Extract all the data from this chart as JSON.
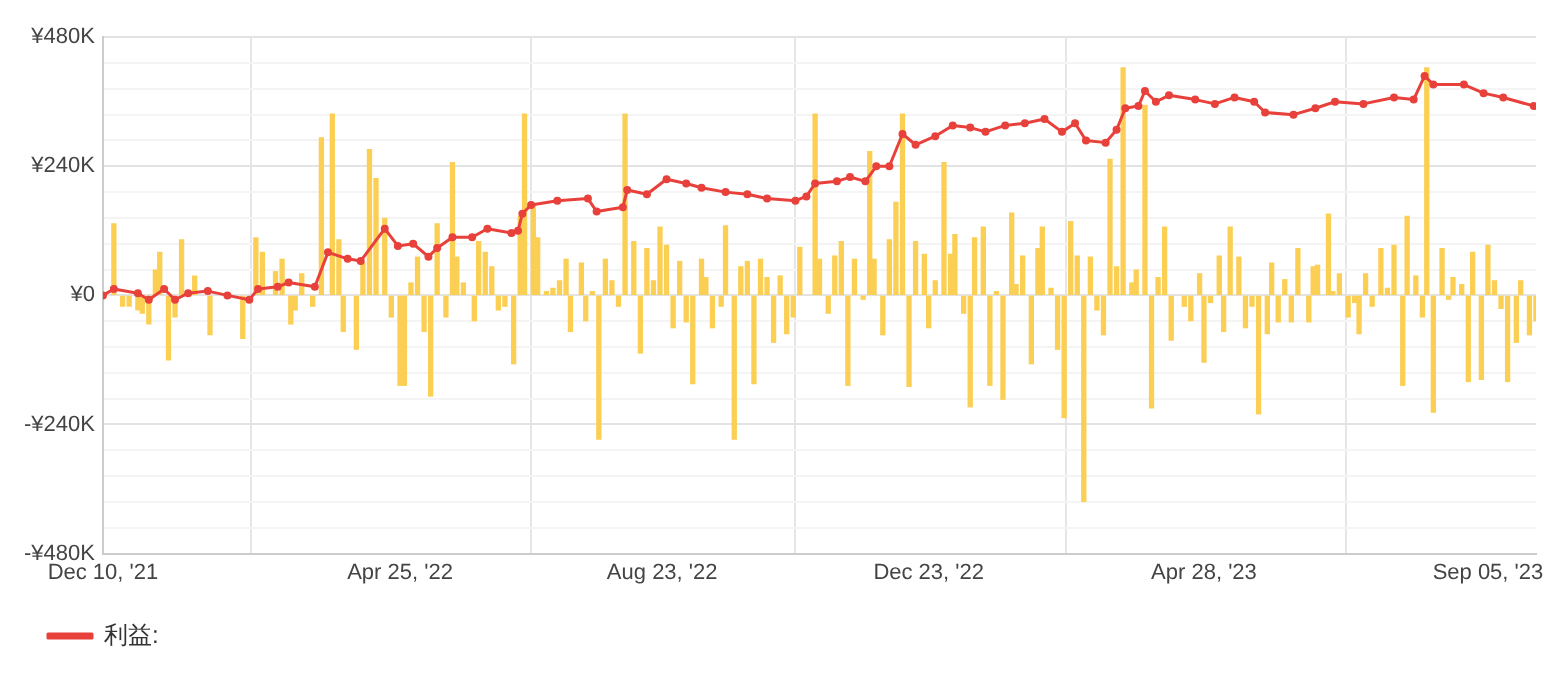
{
  "chart_data": {
    "type": "bar",
    "xlim": [
      "2021-12-10",
      "2023-09-27"
    ],
    "xticks": [
      {
        "value": "2021-12-10",
        "label": "Dec 10, '21"
      },
      {
        "value": "2022-04-25",
        "label": "Apr 25, '22"
      },
      {
        "value": "2022-08-23",
        "label": "Aug 23, '22"
      },
      {
        "value": "2022-12-23",
        "label": "Dec 23, '22"
      },
      {
        "value": "2023-04-28",
        "label": "Apr 28, '23"
      },
      {
        "value": "2023-09-05",
        "label": "Sep 05, '23"
      }
    ],
    "ylim": [
      -480000,
      480000
    ],
    "yticks": [
      {
        "value": -480000,
        "label": "-¥480K"
      },
      {
        "value": -432000,
        "label": null
      },
      {
        "value": -384000,
        "label": null
      },
      {
        "value": -336000,
        "label": null
      },
      {
        "value": -288000,
        "label": null
      },
      {
        "value": -240000,
        "label": "-¥240K"
      },
      {
        "value": -192000,
        "label": null
      },
      {
        "value": -144000,
        "label": null
      },
      {
        "value": -96000,
        "label": null
      },
      {
        "value": -48000,
        "label": null
      },
      {
        "value": 0,
        "label": "¥0"
      },
      {
        "value": 48000,
        "label": null
      },
      {
        "value": 96000,
        "label": null
      },
      {
        "value": 144000,
        "label": null
      },
      {
        "value": 192000,
        "label": null
      },
      {
        "value": 240000,
        "label": "¥240K"
      },
      {
        "value": 288000,
        "label": null
      },
      {
        "value": 336000,
        "label": null
      },
      {
        "value": 384000,
        "label": null
      },
      {
        "value": 432000,
        "label": null
      },
      {
        "value": 480000,
        "label": "¥480K"
      }
    ],
    "grid": true,
    "legend": "bottom left",
    "series": [
      {
        "color": "#fbcf54",
        "x": [
          "2021-12-15",
          "2021-12-19",
          "2021-12-22",
          "2021-12-26",
          "2021-12-28",
          "2021-12-31",
          "2022-01-03",
          "2022-01-05",
          "2022-01-09",
          "2022-01-12",
          "2022-01-15",
          "2022-01-21",
          "2022-01-28",
          "2022-02-12",
          "2022-02-18",
          "2022-02-21",
          "2022-02-27",
          "2022-03-02",
          "2022-03-06",
          "2022-03-08",
          "2022-03-11",
          "2022-03-16",
          "2022-03-20",
          "2022-03-25",
          "2022-03-28",
          "2022-03-30",
          "2022-04-05",
          "2022-04-08",
          "2022-04-11",
          "2022-04-14",
          "2022-04-18",
          "2022-04-21",
          "2022-04-25",
          "2022-04-27",
          "2022-04-30",
          "2022-05-03",
          "2022-05-06",
          "2022-05-09",
          "2022-05-12",
          "2022-05-16",
          "2022-05-19",
          "2022-05-21",
          "2022-05-24",
          "2022-05-29",
          "2022-05-31",
          "2022-06-03",
          "2022-06-06",
          "2022-06-09",
          "2022-06-12",
          "2022-06-16",
          "2022-06-19",
          "2022-06-21",
          "2022-06-25",
          "2022-06-27",
          "2022-07-01",
          "2022-07-04",
          "2022-07-07",
          "2022-07-10",
          "2022-07-12",
          "2022-07-17",
          "2022-07-19",
          "2022-07-22",
          "2022-07-25",
          "2022-07-28",
          "2022-07-31",
          "2022-08-03",
          "2022-08-06",
          "2022-08-10",
          "2022-08-13",
          "2022-08-16",
          "2022-08-19",
          "2022-08-22",
          "2022-08-25",
          "2022-08-28",
          "2022-08-31",
          "2022-09-03",
          "2022-09-06",
          "2022-09-10",
          "2022-09-12",
          "2022-09-15",
          "2022-09-19",
          "2022-09-21",
          "2022-09-25",
          "2022-09-28",
          "2022-10-01",
          "2022-10-04",
          "2022-10-07",
          "2022-10-10",
          "2022-10-13",
          "2022-10-16",
          "2022-10-19",
          "2022-10-22",
          "2022-10-25",
          "2022-11-01",
          "2022-11-03",
          "2022-11-07",
          "2022-11-10",
          "2022-11-13",
          "2022-11-16",
          "2022-11-19",
          "2022-11-23",
          "2022-11-26",
          "2022-11-28",
          "2022-12-02",
          "2022-12-05",
          "2022-12-08",
          "2022-12-11",
          "2022-12-14",
          "2022-12-17",
          "2022-12-21",
          "2022-12-23",
          "2022-12-26",
          "2022-12-30",
          "2023-01-02",
          "2023-01-04",
          "2023-01-08",
          "2023-01-11",
          "2023-01-13",
          "2023-01-17",
          "2023-01-20",
          "2023-01-23",
          "2023-01-26",
          "2023-01-30",
          "2023-02-01",
          "2023-02-04",
          "2023-02-08",
          "2023-02-11",
          "2023-02-13",
          "2023-02-17",
          "2023-02-20",
          "2023-02-23",
          "2023-02-26",
          "2023-03-01",
          "2023-03-04",
          "2023-03-07",
          "2023-03-10",
          "2023-03-13",
          "2023-03-16",
          "2023-03-19",
          "2023-03-22",
          "2023-03-26",
          "2023-03-28",
          "2023-04-01",
          "2023-04-04",
          "2023-04-07",
          "2023-04-10",
          "2023-04-13",
          "2023-04-19",
          "2023-04-22",
          "2023-04-26",
          "2023-04-28",
          "2023-05-01",
          "2023-05-05",
          "2023-05-07",
          "2023-05-10",
          "2023-05-14",
          "2023-05-17",
          "2023-05-20",
          "2023-05-23",
          "2023-05-27",
          "2023-05-29",
          "2023-06-01",
          "2023-06-04",
          "2023-06-07",
          "2023-06-10",
          "2023-06-15",
          "2023-06-17",
          "2023-06-19",
          "2023-06-24",
          "2023-06-26",
          "2023-06-29",
          "2023-07-03",
          "2023-07-06",
          "2023-07-08",
          "2023-07-11",
          "2023-07-14",
          "2023-07-18",
          "2023-07-21",
          "2023-07-24",
          "2023-07-28",
          "2023-07-30",
          "2023-08-03",
          "2023-08-06",
          "2023-08-08",
          "2023-08-11",
          "2023-08-15",
          "2023-08-18",
          "2023-08-20",
          "2023-08-24",
          "2023-08-27",
          "2023-08-29",
          "2023-09-02",
          "2023-09-05",
          "2023-09-08",
          "2023-09-11",
          "2023-09-14",
          "2023-09-18",
          "2023-09-20",
          "2023-09-24",
          "2023-09-27"
        ],
        "values": [
          133000,
          -20000,
          -20000,
          -27000,
          -33000,
          -53000,
          47000,
          80000,
          -120000,
          -40000,
          103000,
          36000,
          -73000,
          -80000,
          107000,
          80000,
          44000,
          67000,
          -53000,
          -27000,
          40000,
          -20000,
          293000,
          337000,
          103000,
          -67000,
          -100000,
          60000,
          271000,
          217000,
          143000,
          -40000,
          -167000,
          -167000,
          23000,
          71000,
          -67000,
          -187000,
          133000,
          -40000,
          247000,
          71000,
          23000,
          -47000,
          100000,
          80000,
          53000,
          -27000,
          -20000,
          -127000,
          147000,
          337000,
          167000,
          107000,
          7000,
          13000,
          27000,
          67000,
          -67000,
          60000,
          -47000,
          7000,
          -267000,
          67000,
          27000,
          -20000,
          337000,
          100000,
          -107000,
          87000,
          27000,
          127000,
          93000,
          -60000,
          63000,
          -49000,
          -164000,
          67000,
          33000,
          -60000,
          -20000,
          129000,
          -267000,
          53000,
          63000,
          -164000,
          67000,
          33000,
          -87000,
          36000,
          -71000,
          -40000,
          89000,
          337000,
          67000,
          -33000,
          73000,
          100000,
          -167000,
          67000,
          -7000,
          267000,
          67000,
          -73000,
          103000,
          173000,
          337000,
          -169000,
          100000,
          76000,
          -60000,
          27000,
          247000,
          76000,
          113000,
          -33000,
          -207000,
          107000,
          127000,
          -167000,
          7000,
          -193000,
          153000,
          20000,
          73000,
          -127000,
          87000,
          127000,
          13000,
          -100000,
          -227000,
          137000,
          73000,
          -383000,
          71000,
          -27000,
          -73000,
          253000,
          53000,
          423000,
          23000,
          47000,
          353000,
          -209000,
          33000,
          127000,
          -83000,
          -20000,
          -47000,
          40000,
          -124000,
          -13000,
          73000,
          -67000,
          127000,
          71000,
          -60000,
          -20000,
          -220000,
          -71000,
          60000,
          -49000,
          29000,
          -49000,
          87000,
          -49000,
          53000,
          56000,
          151000,
          7000,
          40000,
          -40000,
          -13000,
          -71000,
          40000,
          -20000,
          87000,
          13000,
          93000,
          -167000,
          147000,
          36000,
          -40000,
          423000,
          -217000,
          87000,
          -7000,
          33000,
          20000,
          -160000,
          80000,
          -156000,
          93000,
          27000,
          -24000,
          -160000,
          -87000,
          27000,
          -73000,
          -47000
        ]
      },
      {
        "type": "line",
        "name": "利益:",
        "color": "#e8403a",
        "marker": "circle",
        "line_style": "solid",
        "x": [
          "2021-12-10",
          "2021-12-15",
          "2021-12-26",
          "2021-12-31",
          "2022-01-07",
          "2022-01-12",
          "2022-01-18",
          "2022-01-27",
          "2022-02-05",
          "2022-02-15",
          "2022-02-19",
          "2022-02-28",
          "2022-03-05",
          "2022-03-17",
          "2022-03-23",
          "2022-04-01",
          "2022-04-07",
          "2022-04-18",
          "2022-04-24",
          "2022-05-01",
          "2022-05-08",
          "2022-05-12",
          "2022-05-19",
          "2022-05-28",
          "2022-06-04",
          "2022-06-15",
          "2022-06-18",
          "2022-06-20",
          "2022-06-24",
          "2022-07-06",
          "2022-07-20",
          "2022-07-24",
          "2022-08-05",
          "2022-08-07",
          "2022-08-16",
          "2022-08-25",
          "2022-09-03",
          "2022-09-10",
          "2022-09-21",
          "2022-10-01",
          "2022-10-10",
          "2022-10-23",
          "2022-10-28",
          "2022-11-01",
          "2022-11-11",
          "2022-11-17",
          "2022-11-24",
          "2022-11-29",
          "2022-12-05",
          "2022-12-11",
          "2022-12-17",
          "2022-12-26",
          "2023-01-03",
          "2023-01-11",
          "2023-01-18",
          "2023-01-27",
          "2023-02-05",
          "2023-02-14",
          "2023-02-22",
          "2023-02-28",
          "2023-03-05",
          "2023-03-14",
          "2023-03-19",
          "2023-03-23",
          "2023-03-29",
          "2023-04-01",
          "2023-04-06",
          "2023-04-12",
          "2023-04-24",
          "2023-05-03",
          "2023-05-12",
          "2023-05-21",
          "2023-05-26",
          "2023-06-08",
          "2023-06-18",
          "2023-06-27",
          "2023-07-10",
          "2023-07-24",
          "2023-08-02",
          "2023-08-07",
          "2023-08-11",
          "2023-08-25",
          "2023-09-03",
          "2023-09-12",
          "2023-09-26"
        ],
        "values": [
          0,
          12000,
          4000,
          -8000,
          12000,
          -8000,
          4000,
          8000,
          0,
          -8000,
          12000,
          16000,
          24000,
          16000,
          80000,
          68000,
          64000,
          124000,
          92000,
          96000,
          72000,
          88000,
          108000,
          108000,
          124000,
          116000,
          120000,
          152000,
          168000,
          176000,
          180000,
          156000,
          164000,
          196000,
          188000,
          216000,
          208000,
          200000,
          192000,
          188000,
          180000,
          176000,
          184000,
          208000,
          212000,
          220000,
          212000,
          240000,
          240000,
          300000,
          280000,
          296000,
          316000,
          312000,
          304000,
          316000,
          320000,
          328000,
          304000,
          320000,
          288000,
          284000,
          308000,
          348000,
          352000,
          380000,
          360000,
          372000,
          364000,
          356000,
          368000,
          360000,
          340000,
          336000,
          348000,
          360000,
          356000,
          368000,
          364000,
          408000,
          392000,
          392000,
          376000,
          368000,
          352000
        ]
      }
    ]
  }
}
